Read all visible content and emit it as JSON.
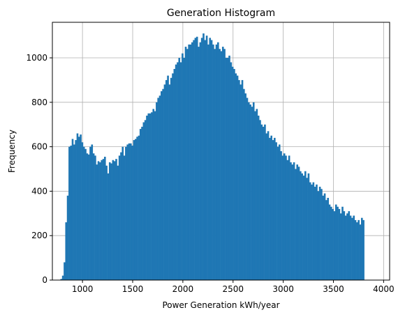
{
  "chart_data": {
    "type": "bar",
    "title": "Generation Histogram",
    "xlabel": "Power Generation kWh/year",
    "ylabel": "Frequency",
    "xlim": [
      700,
      4060
    ],
    "ylim": [
      0,
      1160
    ],
    "xticks": [
      1000,
      1500,
      2000,
      2500,
      3000,
      3500,
      4000
    ],
    "yticks": [
      0,
      200,
      400,
      600,
      800,
      1000
    ],
    "grid": true,
    "bar_color": "#1f77b4",
    "bin_start": 780,
    "bin_width": 16.1,
    "values": [
      5,
      20,
      80,
      260,
      380,
      600,
      605,
      635,
      610,
      630,
      660,
      645,
      655,
      620,
      600,
      590,
      570,
      565,
      600,
      610,
      570,
      560,
      520,
      535,
      530,
      540,
      545,
      555,
      515,
      480,
      530,
      525,
      540,
      535,
      545,
      515,
      560,
      575,
      600,
      560,
      600,
      610,
      615,
      615,
      605,
      630,
      635,
      645,
      650,
      680,
      690,
      710,
      720,
      740,
      750,
      750,
      755,
      770,
      760,
      800,
      820,
      830,
      850,
      860,
      880,
      900,
      920,
      880,
      910,
      930,
      950,
      970,
      980,
      1000,
      980,
      1020,
      1000,
      1050,
      1040,
      1060,
      1060,
      1070,
      1080,
      1090,
      1095,
      1050,
      1070,
      1090,
      1110,
      1080,
      1100,
      1060,
      1090,
      1080,
      1060,
      1040,
      1060,
      1070,
      1040,
      1030,
      1050,
      1040,
      1000,
      1000,
      1010,
      980,
      960,
      950,
      930,
      920,
      900,
      880,
      900,
      860,
      840,
      820,
      800,
      790,
      780,
      800,
      760,
      770,
      740,
      720,
      700,
      690,
      700,
      660,
      670,
      640,
      650,
      630,
      640,
      620,
      600,
      610,
      580,
      560,
      570,
      560,
      540,
      560,
      530,
      520,
      530,
      500,
      520,
      510,
      490,
      480,
      470,
      490,
      460,
      480,
      440,
      430,
      440,
      420,
      430,
      400,
      420,
      410,
      380,
      390,
      360,
      370,
      340,
      330,
      320,
      310,
      340,
      330,
      320,
      300,
      330,
      310,
      290,
      300,
      310,
      290,
      280,
      290,
      270,
      260,
      270,
      250,
      280,
      270
    ]
  }
}
